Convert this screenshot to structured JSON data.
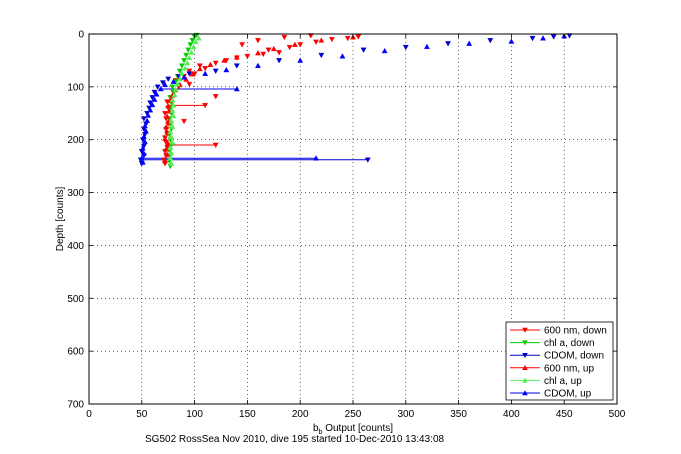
{
  "chart_data": {
    "type": "scatter",
    "xlabel": "b_b Output [counts]",
    "xlabel_main": "b",
    "xlabel_sub": "b",
    "xlabel_rest": " Output [counts]",
    "ylabel": "Depth [counts]",
    "caption": "SG502 RossSea Nov 2010, dive 195 started 10-Dec-2010 13:43:08",
    "xlim": [
      0,
      500
    ],
    "ylim": [
      0,
      700
    ],
    "y_reversed": true,
    "grid": true,
    "grid_style": "dotted",
    "legend_position": "bottom-right",
    "xticks": [
      "0",
      "50",
      "100",
      "150",
      "200",
      "250",
      "300",
      "350",
      "400",
      "450",
      "500"
    ],
    "yticks": [
      "0",
      "100",
      "200",
      "300",
      "400",
      "500",
      "600",
      "700"
    ],
    "series": [
      {
        "name": "600 nm, down",
        "color": "#ff0000",
        "marker": "triangle-down",
        "points": [
          [
            72,
            245
          ],
          [
            71,
            238
          ],
          [
            73,
            230
          ],
          [
            72,
            222
          ],
          [
            74,
            214
          ],
          [
            120,
            210
          ],
          [
            73,
            205
          ],
          [
            72,
            196
          ],
          [
            74,
            188
          ],
          [
            73,
            180
          ],
          [
            75,
            170
          ],
          [
            90,
            165
          ],
          [
            73,
            160
          ],
          [
            72,
            150
          ],
          [
            75,
            140
          ],
          [
            110,
            135
          ],
          [
            74,
            128
          ],
          [
            78,
            120
          ],
          [
            120,
            118
          ],
          [
            80,
            110
          ],
          [
            85,
            100
          ],
          [
            95,
            95
          ],
          [
            82,
            88
          ],
          [
            90,
            80
          ],
          [
            100,
            75
          ],
          [
            95,
            70
          ],
          [
            110,
            65
          ],
          [
            105,
            60
          ],
          [
            120,
            55
          ],
          [
            130,
            50
          ],
          [
            140,
            45
          ],
          [
            150,
            42
          ],
          [
            165,
            38
          ],
          [
            180,
            35
          ],
          [
            170,
            30
          ],
          [
            190,
            25
          ],
          [
            200,
            20
          ],
          [
            215,
            15
          ],
          [
            230,
            10
          ],
          [
            245,
            8
          ],
          [
            255,
            5
          ],
          [
            210,
            3
          ],
          [
            185,
            6
          ],
          [
            160,
            12
          ],
          [
            145,
            20
          ]
        ]
      },
      {
        "name": "chl a, down",
        "color": "#00cc00",
        "marker": "triangle-down",
        "points": [
          [
            77,
            250
          ],
          [
            76,
            240
          ],
          [
            77,
            230
          ],
          [
            76,
            220
          ],
          [
            78,
            210
          ],
          [
            77,
            200
          ],
          [
            76,
            190
          ],
          [
            78,
            180
          ],
          [
            77,
            170
          ],
          [
            76,
            160
          ],
          [
            78,
            150
          ],
          [
            77,
            140
          ],
          [
            78,
            130
          ],
          [
            77,
            120
          ],
          [
            80,
            110
          ],
          [
            79,
            100
          ],
          [
            82,
            90
          ],
          [
            84,
            80
          ],
          [
            86,
            70
          ],
          [
            88,
            60
          ],
          [
            90,
            50
          ],
          [
            92,
            40
          ],
          [
            94,
            30
          ],
          [
            96,
            20
          ],
          [
            98,
            12
          ],
          [
            100,
            5
          ],
          [
            102,
            2
          ]
        ]
      },
      {
        "name": "CDOM, down",
        "color": "#0000cc",
        "marker": "triangle-down",
        "points": [
          [
            50,
            245
          ],
          [
            49,
            238
          ],
          [
            52,
            230
          ],
          [
            264,
            238
          ],
          [
            50,
            222
          ],
          [
            52,
            212
          ],
          [
            51,
            200
          ],
          [
            53,
            190
          ],
          [
            52,
            180
          ],
          [
            54,
            170
          ],
          [
            52,
            160
          ],
          [
            55,
            150
          ],
          [
            57,
            140
          ],
          [
            58,
            130
          ],
          [
            60,
            120
          ],
          [
            62,
            110
          ],
          [
            65,
            100
          ],
          [
            70,
            92
          ],
          [
            75,
            85
          ],
          [
            85,
            80
          ],
          [
            95,
            75
          ],
          [
            120,
            70
          ],
          [
            140,
            60
          ],
          [
            180,
            50
          ],
          [
            220,
            40
          ],
          [
            260,
            30
          ],
          [
            300,
            25
          ],
          [
            340,
            18
          ],
          [
            380,
            12
          ],
          [
            420,
            8
          ],
          [
            440,
            5
          ],
          [
            455,
            3
          ]
        ]
      },
      {
        "name": "600 nm, up",
        "color": "#ff0000",
        "marker": "triangle-up",
        "points": [
          [
            72,
            240
          ],
          [
            74,
            228
          ],
          [
            73,
            218
          ],
          [
            75,
            208
          ],
          [
            72,
            198
          ],
          [
            74,
            186
          ],
          [
            73,
            176
          ],
          [
            75,
            166
          ],
          [
            74,
            156
          ],
          [
            76,
            146
          ],
          [
            75,
            136
          ],
          [
            77,
            126
          ],
          [
            79,
            116
          ],
          [
            82,
            106
          ],
          [
            86,
            96
          ],
          [
            92,
            86
          ],
          [
            98,
            76
          ],
          [
            105,
            66
          ],
          [
            115,
            58
          ],
          [
            128,
            50
          ],
          [
            140,
            44
          ],
          [
            160,
            36
          ],
          [
            175,
            28
          ],
          [
            195,
            20
          ],
          [
            220,
            12
          ],
          [
            250,
            6
          ]
        ]
      },
      {
        "name": "chl a, up",
        "color": "#55ee55",
        "marker": "triangle-up",
        "points": [
          [
            78,
            245
          ],
          [
            77,
            235
          ],
          [
            78,
            225
          ],
          [
            77,
            215
          ],
          [
            79,
            205
          ],
          [
            78,
            195
          ],
          [
            77,
            185
          ],
          [
            79,
            175
          ],
          [
            78,
            165
          ],
          [
            80,
            155
          ],
          [
            79,
            145
          ],
          [
            80,
            135
          ],
          [
            79,
            125
          ],
          [
            81,
            115
          ],
          [
            82,
            105
          ],
          [
            84,
            95
          ],
          [
            86,
            85
          ],
          [
            88,
            75
          ],
          [
            91,
            65
          ],
          [
            93,
            55
          ],
          [
            95,
            45
          ],
          [
            97,
            35
          ],
          [
            99,
            25
          ],
          [
            101,
            15
          ],
          [
            104,
            8
          ]
        ]
      },
      {
        "name": "CDOM, up",
        "color": "#0000ff",
        "marker": "triangle-up",
        "points": [
          [
            51,
            243
          ],
          [
            50,
            235
          ],
          [
            215,
            235
          ],
          [
            52,
            226
          ],
          [
            51,
            216
          ],
          [
            53,
            204
          ],
          [
            52,
            194
          ],
          [
            54,
            184
          ],
          [
            53,
            174
          ],
          [
            55,
            164
          ],
          [
            56,
            154
          ],
          [
            58,
            144
          ],
          [
            60,
            134
          ],
          [
            62,
            124
          ],
          [
            64,
            114
          ],
          [
            68,
            104
          ],
          [
            140,
            104
          ],
          [
            72,
            96
          ],
          [
            80,
            90
          ],
          [
            90,
            82
          ],
          [
            110,
            75
          ],
          [
            130,
            68
          ],
          [
            160,
            60
          ],
          [
            200,
            50
          ],
          [
            240,
            42
          ],
          [
            280,
            32
          ],
          [
            320,
            24
          ],
          [
            360,
            18
          ],
          [
            400,
            14
          ],
          [
            430,
            8
          ],
          [
            450,
            4
          ]
        ]
      }
    ],
    "horizontal_spikes": [
      {
        "color": "#0000cc",
        "depth": 238,
        "x_from": 50,
        "x_to": 264
      },
      {
        "color": "#0000ff",
        "depth": 235,
        "x_from": 51,
        "x_to": 215
      },
      {
        "color": "#ff0000",
        "depth": 210,
        "x_from": 73,
        "x_to": 120
      },
      {
        "color": "#0000ff",
        "depth": 104,
        "x_from": 66,
        "x_to": 140
      },
      {
        "color": "#ff0000",
        "depth": 135,
        "x_from": 75,
        "x_to": 110
      }
    ]
  }
}
